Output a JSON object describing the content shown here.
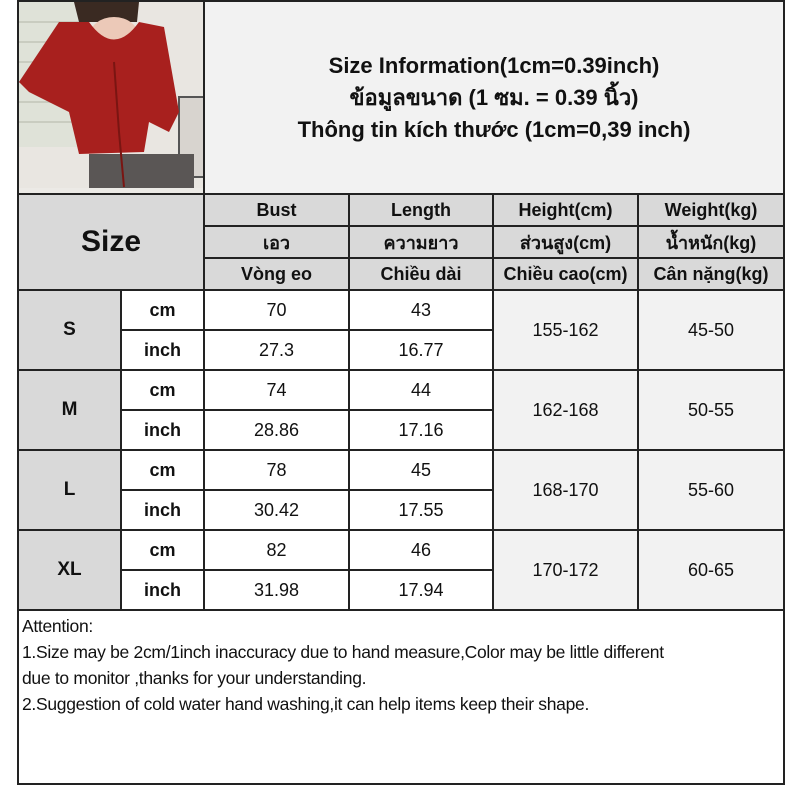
{
  "title": {
    "line1": "Size Information(1cm=0.39inch)",
    "line2": "ข้อมูลขนาด (1 ซม. = 0.39 นิ้ว)",
    "line3": "Thông tin kích thước (1cm=0,39 inch)"
  },
  "product_image": "red lace-up cropped cardigan photo",
  "size_label": "Size",
  "columns": [
    {
      "en": "Bust",
      "th": "เอว",
      "vi": "Vòng eo"
    },
    {
      "en": "Length",
      "th": "ความยาว",
      "vi": "Chiều dài"
    },
    {
      "en": "Height(cm)",
      "th": "ส่วนสูง(cm)",
      "vi": "Chiều cao(cm)"
    },
    {
      "en": "Weight(kg)",
      "th": "น้ำหนัก(kg)",
      "vi": "Cân nặng(kg)"
    }
  ],
  "units": {
    "cm": "cm",
    "inch": "inch"
  },
  "rows": [
    {
      "size": "S",
      "cm": [
        "70",
        "43"
      ],
      "inch": [
        "27.3",
        "16.77"
      ],
      "height": "155-162",
      "weight": "45-50"
    },
    {
      "size": "M",
      "cm": [
        "74",
        "44"
      ],
      "inch": [
        "28.86",
        "17.16"
      ],
      "height": "162-168",
      "weight": "50-55"
    },
    {
      "size": "L",
      "cm": [
        "78",
        "45"
      ],
      "inch": [
        "30.42",
        "17.55"
      ],
      "height": "168-170",
      "weight": "55-60"
    },
    {
      "size": "XL",
      "cm": [
        "82",
        "46"
      ],
      "inch": [
        "31.98",
        "17.94"
      ],
      "height": "170-172",
      "weight": "60-65"
    }
  ],
  "attention": {
    "heading": "Attention:",
    "line1": "1.Size may be 2cm/1inch inaccuracy due to hand measure,Color may be little different",
    "line2": "due to monitor ,thanks for your understanding.",
    "line3": "2.Suggestion of cold water hand washing,it can help items keep their shape."
  },
  "colors": {
    "header_gray": "#d9d9d9",
    "light_gray": "#f2f2f2",
    "border": "#222222",
    "garment_red": "#a8201e"
  }
}
